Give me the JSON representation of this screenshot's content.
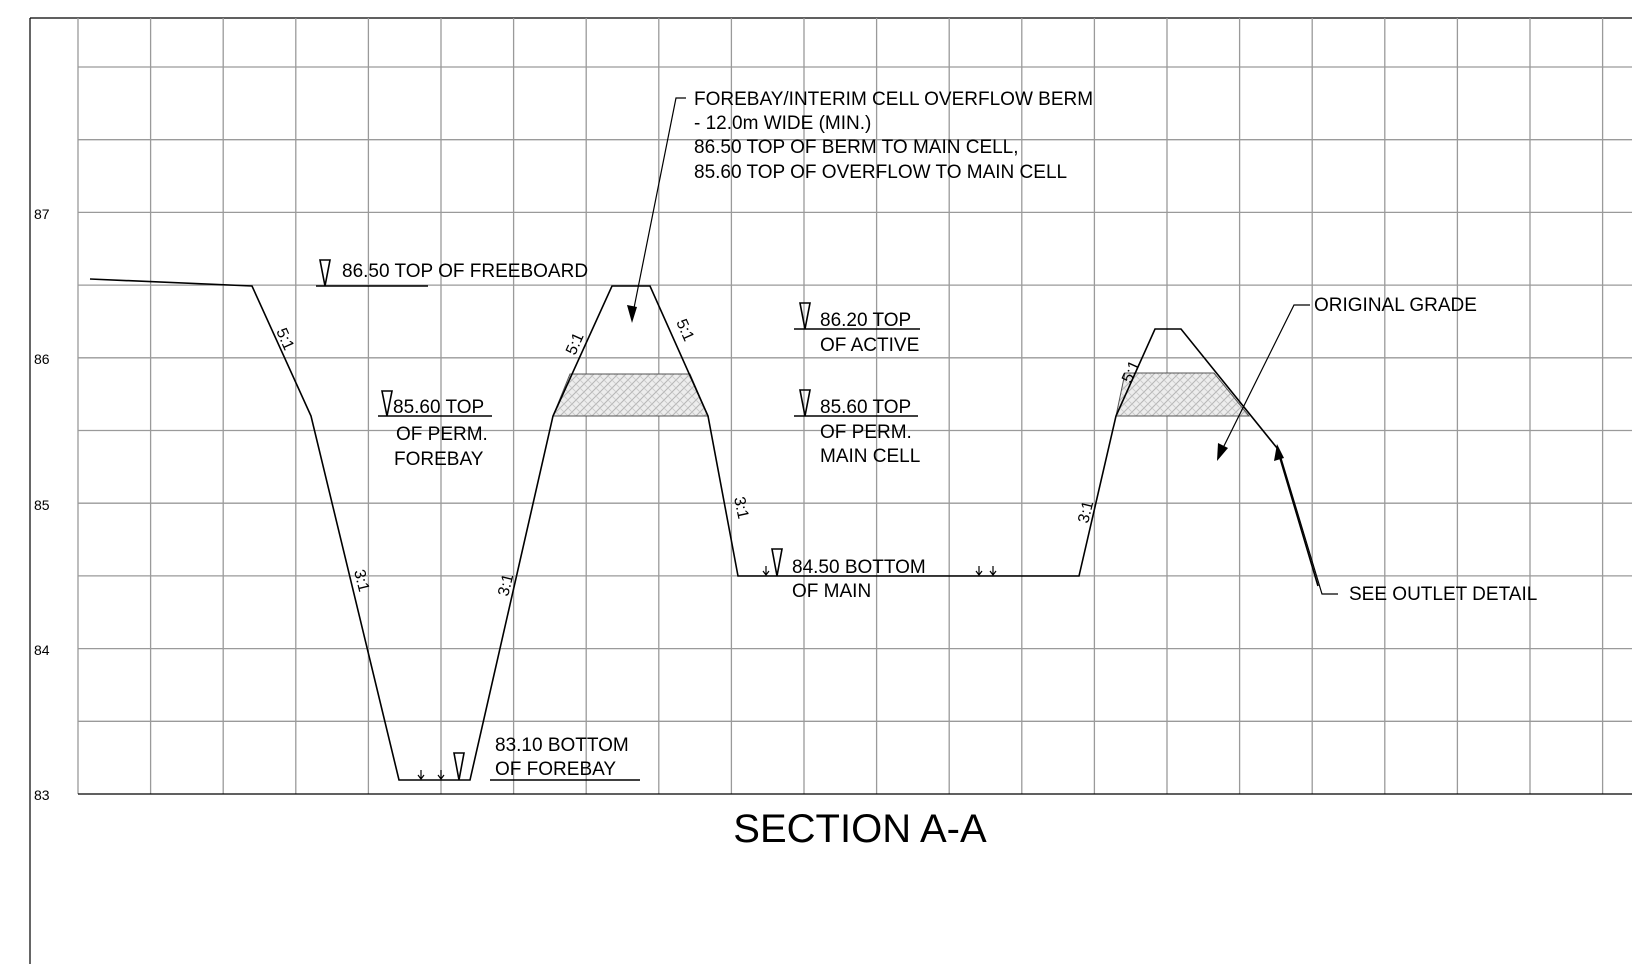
{
  "title": "SECTION A-A",
  "elevation_axis": {
    "ticks": [
      "87",
      "86",
      "85",
      "84",
      "83"
    ]
  },
  "notes": {
    "berm_callout": [
      "FOREBAY/INTERIM CELL OVERFLOW BERM",
      "- 12.0m WIDE (MIN.)",
      "86.50 TOP OF BERM TO MAIN CELL,",
      "85.60 TOP OF OVERFLOW TO MAIN CELL"
    ],
    "top_freeboard": "86.50 TOP OF FREEBOARD",
    "top_perm_forebay": [
      "85.60 TOP",
      "OF PERM.",
      "FOREBAY"
    ],
    "top_active": [
      "86.20 TOP",
      "OF ACTIVE"
    ],
    "top_perm_main": [
      "85.60 TOP",
      "OF PERM.",
      "MAIN CELL"
    ],
    "bottom_main": [
      "84.50 BOTTOM",
      "OF MAIN"
    ],
    "bottom_forebay": [
      "83.10 BOTTOM",
      "OF FOREBAY"
    ],
    "original_grade": "ORIGINAL GRADE",
    "outlet": "SEE OUTLET DETAIL"
  },
  "slopes": [
    "5:1",
    "3:1",
    "5:1",
    "5:1",
    "3:1",
    "3:1",
    "5:1",
    "3:1"
  ],
  "colors": {
    "grid": "#9a9a9a",
    "line": "#000000",
    "fill_hatch": "#d9d9d9"
  }
}
